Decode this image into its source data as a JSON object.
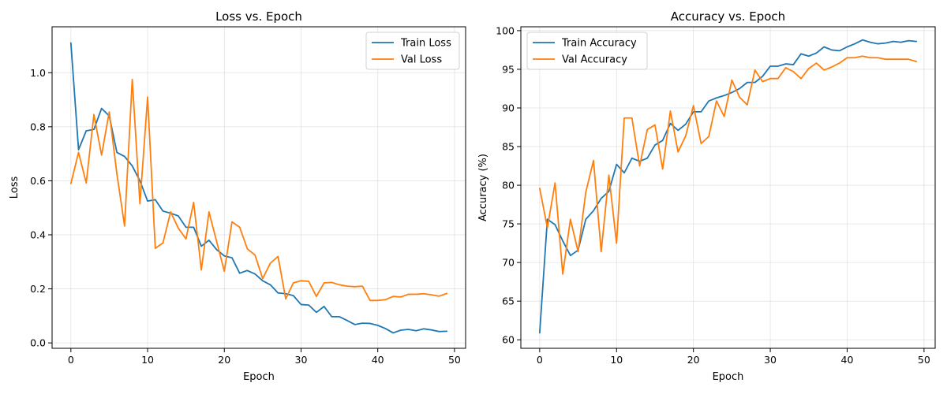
{
  "chart_data": [
    {
      "type": "line",
      "title": "Loss vs. Epoch",
      "xlabel": "Epoch",
      "ylabel": "Loss",
      "xlim": [
        -2.45,
        51.45
      ],
      "ylim": [
        -0.02,
        1.17
      ],
      "xticks": [
        0,
        10,
        20,
        30,
        40,
        50
      ],
      "yticks": [
        0.0,
        0.2,
        0.4,
        0.6,
        0.8,
        1.0
      ],
      "ytick_format": 1,
      "grid": true,
      "legend": "upper right",
      "x": [
        0,
        1,
        2,
        3,
        4,
        5,
        6,
        7,
        8,
        9,
        10,
        11,
        12,
        13,
        14,
        15,
        16,
        17,
        18,
        19,
        20,
        21,
        22,
        23,
        24,
        25,
        26,
        27,
        28,
        29,
        30,
        31,
        32,
        33,
        34,
        35,
        36,
        37,
        38,
        39,
        40,
        41,
        42,
        43,
        44,
        45,
        46,
        47,
        48,
        49
      ],
      "series": [
        {
          "name": "Train Loss",
          "color": "#1f77b4",
          "values": [
            1.11,
            0.715,
            0.785,
            0.79,
            0.868,
            0.84,
            0.705,
            0.69,
            0.655,
            0.6,
            0.525,
            0.53,
            0.488,
            0.48,
            0.47,
            0.428,
            0.428,
            0.358,
            0.38,
            0.345,
            0.322,
            0.315,
            0.258,
            0.268,
            0.255,
            0.23,
            0.215,
            0.185,
            0.182,
            0.175,
            0.142,
            0.14,
            0.113,
            0.135,
            0.097,
            0.097,
            0.083,
            0.068,
            0.073,
            0.072,
            0.065,
            0.053,
            0.037,
            0.047,
            0.05,
            0.045,
            0.052,
            0.048,
            0.042,
            0.043
          ]
        },
        {
          "name": "Val Loss",
          "color": "#ff7f0e",
          "values": [
            0.59,
            0.705,
            0.592,
            0.845,
            0.695,
            0.855,
            0.625,
            0.433,
            0.975,
            0.515,
            0.91,
            0.35,
            0.37,
            0.485,
            0.425,
            0.385,
            0.52,
            0.27,
            0.485,
            0.375,
            0.265,
            0.448,
            0.428,
            0.348,
            0.325,
            0.238,
            0.295,
            0.32,
            0.163,
            0.222,
            0.23,
            0.228,
            0.172,
            0.222,
            0.224,
            0.215,
            0.21,
            0.208,
            0.21,
            0.157,
            0.157,
            0.16,
            0.172,
            0.17,
            0.18,
            0.18,
            0.182,
            0.178,
            0.173,
            0.183
          ]
        }
      ]
    },
    {
      "type": "line",
      "title": "Accuracy vs. Epoch",
      "xlabel": "Epoch",
      "ylabel": "Accuracy (%)",
      "xlim": [
        -2.45,
        51.45
      ],
      "ylim": [
        58.9,
        100.5
      ],
      "xticks": [
        0,
        10,
        20,
        30,
        40,
        50
      ],
      "yticks": [
        60,
        65,
        70,
        75,
        80,
        85,
        90,
        95,
        100
      ],
      "ytick_format": 0,
      "grid": true,
      "legend": "upper left",
      "x": [
        0,
        1,
        2,
        3,
        4,
        5,
        6,
        7,
        8,
        9,
        10,
        11,
        12,
        13,
        14,
        15,
        16,
        17,
        18,
        19,
        20,
        21,
        22,
        23,
        24,
        25,
        26,
        27,
        28,
        29,
        30,
        31,
        32,
        33,
        34,
        35,
        36,
        37,
        38,
        39,
        40,
        41,
        42,
        43,
        44,
        45,
        46,
        47,
        48,
        49
      ],
      "series": [
        {
          "name": "Train Accuracy",
          "color": "#1f77b4",
          "values": [
            60.9,
            75.6,
            74.9,
            72.8,
            70.9,
            71.6,
            75.6,
            76.7,
            78.3,
            79.2,
            82.7,
            81.6,
            83.5,
            83.1,
            83.5,
            85.2,
            85.8,
            88.0,
            87.1,
            87.9,
            89.5,
            89.5,
            90.9,
            91.3,
            91.6,
            92.0,
            92.5,
            93.3,
            93.3,
            94.1,
            95.4,
            95.4,
            95.7,
            95.6,
            97.0,
            96.7,
            97.1,
            97.9,
            97.5,
            97.4,
            97.9,
            98.3,
            98.8,
            98.5,
            98.3,
            98.4,
            98.6,
            98.5,
            98.7,
            98.6
          ]
        },
        {
          "name": "Val Accuracy",
          "color": "#ff7f0e",
          "values": [
            79.6,
            74.5,
            80.3,
            68.5,
            75.6,
            71.4,
            79.1,
            83.2,
            71.4,
            81.3,
            72.5,
            88.7,
            88.7,
            82.5,
            87.2,
            87.8,
            82.1,
            89.6,
            84.3,
            86.4,
            90.3,
            85.4,
            86.3,
            90.9,
            88.9,
            93.6,
            91.4,
            90.4,
            94.9,
            93.4,
            93.8,
            93.8,
            95.2,
            94.7,
            93.8,
            95.1,
            95.8,
            94.9,
            95.3,
            95.8,
            96.5,
            96.5,
            96.7,
            96.5,
            96.5,
            96.3,
            96.3,
            96.3,
            96.3,
            96.0
          ]
        }
      ]
    }
  ]
}
